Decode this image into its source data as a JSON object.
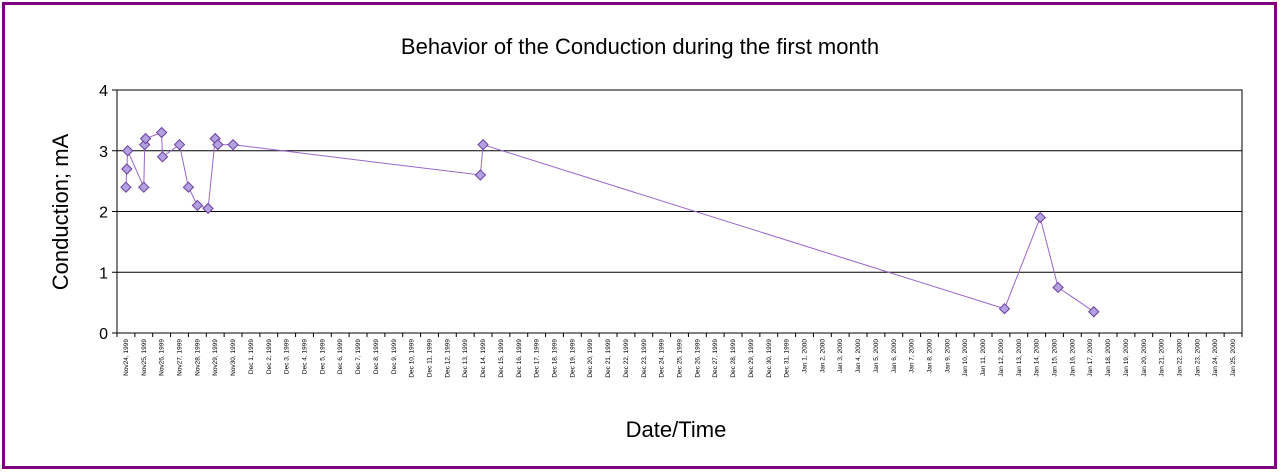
{
  "chart_data": {
    "type": "line",
    "title": "Behavior of the Conduction during the first month",
    "xlabel": "Date/Time",
    "ylabel": "Conduction; mA",
    "ylim": [
      0,
      4
    ],
    "yticks": [
      "0",
      "1",
      "2",
      "3",
      "4"
    ],
    "grid": true,
    "legend": "none",
    "colors": {
      "line": "#9966cc",
      "marker_fill": "#b3a0e0",
      "marker_stroke": "#6a3d9a",
      "frame": "#800080",
      "grid": "#000000"
    },
    "categories": [
      "Nov24, 1999",
      "Nov25, 1999",
      "Nov26, 1999",
      "Nov27, 1999",
      "Nov28, 1999",
      "Nov29, 1999",
      "Nov30, 1999",
      "Dec 1, 1999",
      "Dec 2, 1999",
      "Dec 3, 1999",
      "Dec 4, 1999",
      "Dec 5, 1999",
      "Dec 6, 1999",
      "Dec 7, 1999",
      "Dec 8, 1999",
      "Dec 9, 1999",
      "Dec 10, 1999",
      "Dec 11, 1999",
      "Dec 12, 1999",
      "Dec 13, 1999",
      "Dec 14, 1999",
      "Dec 15, 1999",
      "Dec 16, 1999",
      "Dec 17, 1999",
      "Dec 18, 1999",
      "Dec 19, 1999",
      "Dec 20, 1999",
      "Dec 21, 1999",
      "Dec 22, 1999",
      "Dec 23, 1999",
      "Dec 24, 1999",
      "Dec 25, 1999",
      "Dec 26, 1999",
      "Dec 27, 1999",
      "Dec 28, 1999",
      "Dec 29, 1999",
      "Dec 30, 1999",
      "Dec 31, 1999",
      "Jan 1, 2000",
      "Jan 2, 2000",
      "Jan 3, 2000",
      "Jan 4, 2000",
      "Jan 5, 2000",
      "Jan 6, 2000",
      "Jan 7, 2000",
      "Jan 8, 2000",
      "Jan 9, 2000",
      "Jan 10, 2000",
      "Jan 11, 2000",
      "Jan 12, 2000",
      "Jan 13, 2000",
      "Jan 14, 2000",
      "Jan 15, 2000",
      "Jan 16, 2000",
      "Jan 17, 2000",
      "Jan 18, 2000",
      "Jan 19, 2000",
      "Jan 20, 2000",
      "Jan 21, 2000",
      "Jan 22, 2000",
      "Jan 23, 2000",
      "Jan 24, 2000",
      "Jan 25, 2000"
    ],
    "series": [
      {
        "x": [
          "Nov24, 1999",
          "Nov24, 1999",
          "Nov24, 1999",
          "Nov25, 1999",
          "Nov25, 1999",
          "Nov25, 1999",
          "Nov26, 1999",
          "Nov26, 1999",
          "Nov27, 1999",
          "Nov27, 1999",
          "Nov29, 1999",
          "Nov29, 1999",
          "Nov30, 1999",
          "Nov30, 1999",
          "Dec 1, 1999",
          "Dec 15, 1999",
          "Dec 15, 1999",
          "Jan 13, 2000",
          "Jan 15, 2000",
          "Jan 16, 2000",
          "Jan 18, 2000"
        ],
        "offset_days": [
          0.0,
          0.0,
          0.0,
          0.0,
          0.0,
          0.0,
          0.0,
          0.0,
          0.0,
          0.0,
          0.0,
          0.0,
          0.0,
          0.0,
          0.0,
          0.0,
          0.0,
          0.0,
          0.0,
          0.0,
          0.0
        ],
        "days": [
          0.0,
          0.05,
          0.1,
          1.0,
          1.05,
          1.1,
          2.0,
          2.05,
          3.0,
          3.5,
          4.0,
          4.6,
          5.0,
          5.15,
          6.0,
          19.85,
          20.0,
          49.2,
          51.2,
          52.2,
          54.2
        ],
        "y": [
          2.4,
          2.7,
          3.0,
          2.4,
          3.1,
          3.2,
          3.3,
          2.9,
          3.1,
          2.4,
          2.1,
          2.05,
          3.2,
          3.1,
          3.1,
          2.6,
          3.1,
          0.4,
          1.9,
          0.75,
          0.35
        ]
      }
    ]
  }
}
